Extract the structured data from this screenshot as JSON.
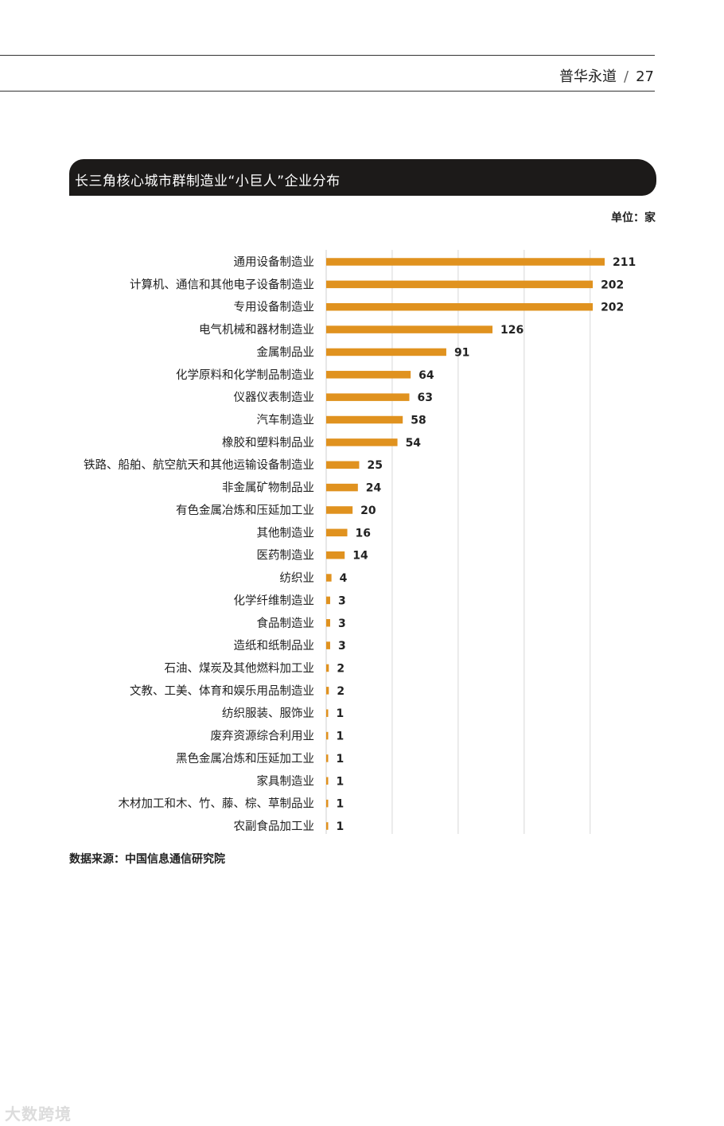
{
  "header": {
    "publisher": "普华永道",
    "separator": "/",
    "page_number": "27"
  },
  "figure": {
    "title": "长三角核心城市群制造业“小巨人”企业分布",
    "unit": "单位：家"
  },
  "source": "数据来源：中国信息通信研究院",
  "watermark": "大数跨境",
  "colors": {
    "bar": "#E0921F",
    "title_bar": "#1C1A19",
    "grid": "#D8D8D8"
  },
  "chart_data": {
    "type": "bar",
    "orientation": "horizontal",
    "categories": [
      "通用设备制造业",
      "计算机、通信和其他电子设备制造业",
      "专用设备制造业",
      "电气机械和器材制造业",
      "金属制品业",
      "化学原料和化学制品制造业",
      "仪器仪表制造业",
      "汽车制造业",
      "橡胶和塑料制品业",
      "铁路、船舶、航空航天和其他运输设备制造业",
      "非金属矿物制品业",
      "有色金属冶炼和压延加工业",
      "其他制造业",
      "医药制造业",
      "纺织业",
      "化学纤维制造业",
      "食品制造业",
      "造纸和纸制品业",
      "石油、煤炭及其他燃料加工业",
      "文教、工美、体育和娱乐用品制造业",
      "纺织服装、服饰业",
      "废弃资源综合利用业",
      "黑色金属冶炼和压延加工业",
      "家具制造业",
      "木材加工和木、竹、藤、棕、草制品业",
      "农副食品加工业"
    ],
    "values": [
      211,
      202,
      202,
      126,
      91,
      64,
      63,
      58,
      54,
      25,
      24,
      20,
      16,
      14,
      4,
      3,
      3,
      3,
      2,
      2,
      1,
      1,
      1,
      1,
      1,
      1
    ],
    "xlim": [
      0,
      211
    ],
    "gridlines": [
      50,
      100,
      150,
      200
    ],
    "grid": true,
    "legend": false
  }
}
